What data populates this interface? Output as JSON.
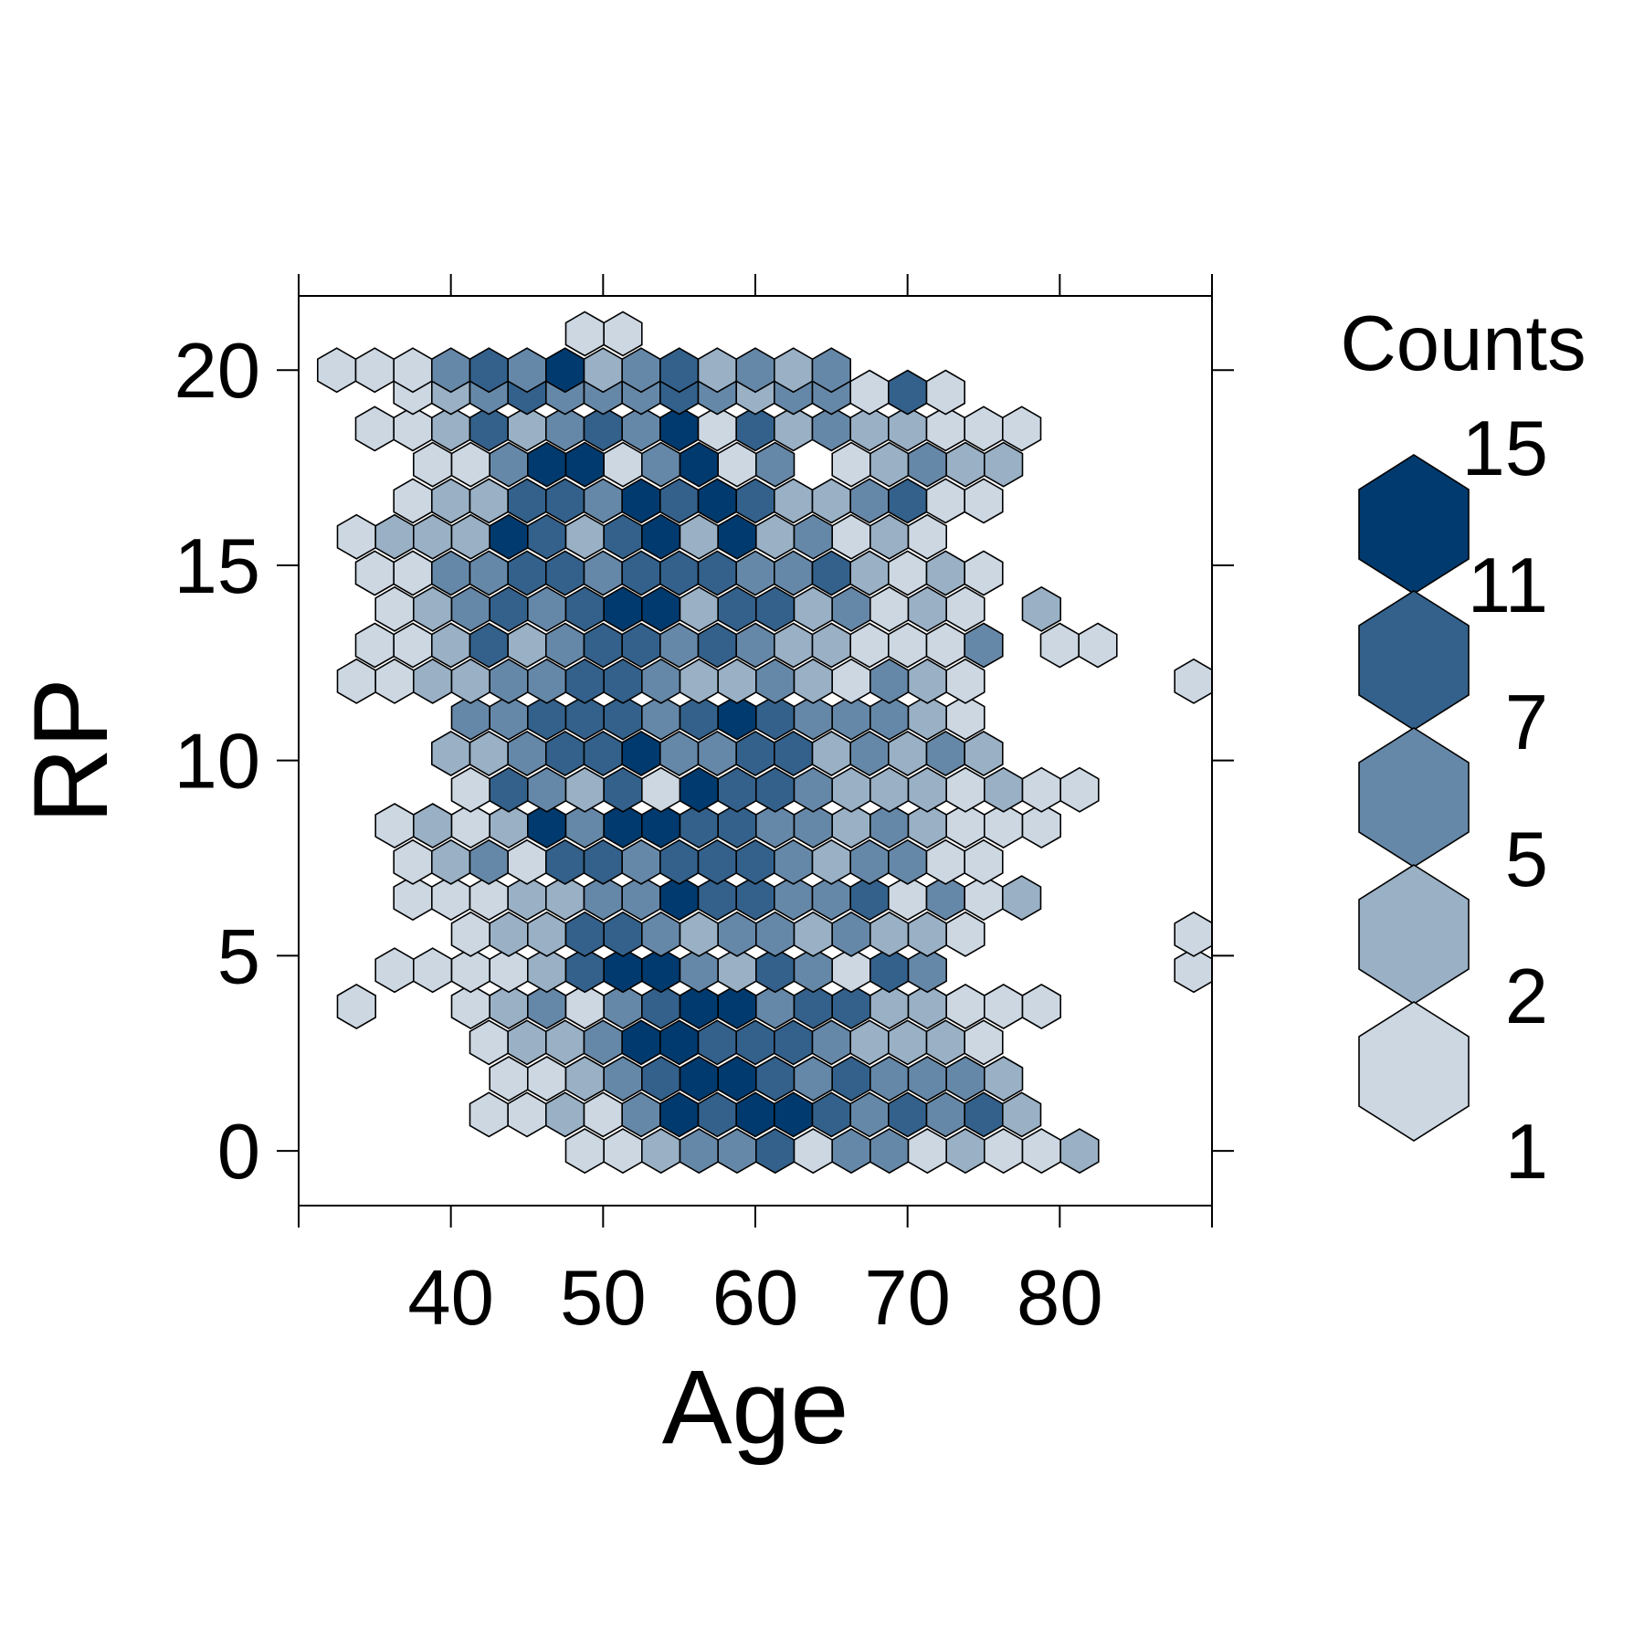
{
  "chart_data": {
    "type": "heatmap",
    "subtype": "hexbin",
    "xlabel": "Age",
    "ylabel": "RP",
    "xlim": [
      30,
      90
    ],
    "ylim": [
      -1.4,
      21.9
    ],
    "x_ticks": [
      40,
      50,
      60,
      70,
      80
    ],
    "y_ticks": [
      0,
      5,
      10,
      15,
      20
    ],
    "hex_width": 2.5,
    "hex_row_step": 0.925,
    "legend": {
      "title": "Counts",
      "position": "right",
      "labels": [
        "15",
        "11",
        "7",
        "5",
        "2",
        "1"
      ]
    },
    "colors": [
      "#ccd7e2",
      "#99b0c5",
      "#6688a8",
      "#33618b",
      "#003a6e"
    ],
    "bin_counts_description_levels": [
      "1",
      "2",
      "5",
      "7",
      "11",
      "15"
    ],
    "bins": [
      [
        0,
        20.0,
        2.5,
        41.1,
        50,
        20.0,
        1,
        42.1,
        2.5,
        29.6,
        51,
        12.7,
        2,
        42.4,
        3.4,
        12.7
      ],
      [
        1,
        30.0,
        1
      ],
      [
        2,
        33.8,
        1
      ]
    ],
    "bin_rows": [
      {
        "y": 0.0,
        "x0": 48.8,
        "levels": [
          0,
          0,
          1,
          2,
          2,
          3,
          0,
          2,
          2,
          0,
          1,
          0,
          0,
          1,
          -1,
          -1,
          -1,
          -1,
          -1,
          0
        ]
      },
      {
        "y": 0.93,
        "x0": 42.5,
        "levels": [
          0,
          0,
          1,
          0,
          2,
          4,
          3,
          4,
          4,
          3,
          2,
          3,
          2,
          3,
          1,
          -1,
          -1,
          -1,
          -1,
          -1,
          -1,
          0,
          -1,
          -1,
          -1,
          -1,
          -1,
          -1
        ]
      },
      {
        "y": 1.85,
        "x0": 43.8,
        "levels": [
          0,
          0,
          1,
          2,
          3,
          4,
          4,
          3,
          2,
          3,
          2,
          2,
          2,
          1,
          -1,
          -1,
          -1,
          -1,
          -1,
          -1,
          -1,
          -1,
          -1,
          -1,
          -1,
          -1,
          -1,
          0,
          0
        ]
      },
      {
        "y": 2.78,
        "x0": 42.5,
        "levels": [
          0,
          1,
          1,
          2,
          4,
          4,
          3,
          3,
          3,
          2,
          1,
          1,
          1,
          0,
          -1,
          -1,
          -1,
          -1,
          -1,
          -1,
          -1,
          -1,
          0,
          -1,
          -1,
          -1,
          -1,
          -1,
          0
        ]
      },
      {
        "y": 3.7,
        "x0": 33.8,
        "levels": [
          0,
          -1,
          -1,
          0,
          1,
          2,
          0,
          2,
          3,
          4,
          4,
          2,
          3,
          3,
          1,
          1,
          0,
          0,
          0,
          -1,
          -1,
          -1,
          -1,
          -1,
          -1,
          -1,
          -1,
          -1,
          -1,
          -1,
          -1,
          0
        ]
      },
      {
        "y": 4.63,
        "x0": 36.3,
        "levels": [
          0,
          0,
          0,
          0,
          1,
          3,
          4,
          4,
          2,
          1,
          3,
          2,
          0,
          3,
          2,
          -1,
          -1,
          -1,
          -1,
          -1,
          -1,
          0,
          0,
          0,
          0,
          -1,
          -1,
          -1,
          0
        ]
      },
      {
        "y": 5.55,
        "x0": 41.3,
        "levels": [
          0,
          1,
          1,
          3,
          3,
          2,
          1,
          2,
          2,
          1,
          2,
          1,
          1,
          0,
          -1,
          -1,
          -1,
          -1,
          -1,
          0
        ]
      },
      {
        "y": 6.48,
        "x0": 37.5,
        "levels": [
          0,
          0,
          0,
          1,
          1,
          2,
          2,
          4,
          3,
          3,
          2,
          2,
          3,
          0,
          2,
          0,
          1,
          -1,
          -1,
          -1,
          -1,
          -1,
          -1,
          0,
          0,
          0
        ]
      },
      {
        "y": 7.4,
        "x0": 37.5,
        "levels": [
          0,
          1,
          2,
          0,
          3,
          3,
          2,
          3,
          3,
          3,
          2,
          1,
          2,
          2,
          0,
          0,
          -1,
          -1,
          -1,
          -1,
          -1,
          -1,
          -1,
          0,
          -1,
          -1,
          -1,
          -1,
          -1,
          0
        ]
      },
      {
        "y": 8.33,
        "x0": 36.3,
        "levels": [
          0,
          1,
          0,
          1,
          4,
          2,
          4,
          4,
          3,
          3,
          2,
          2,
          1,
          2,
          1,
          0,
          0,
          0,
          -1,
          -1,
          -1,
          -1,
          -1,
          -1,
          -1,
          0
        ]
      },
      {
        "y": 9.25,
        "x0": 41.3,
        "levels": [
          0,
          3,
          2,
          1,
          3,
          0,
          4,
          3,
          3,
          2,
          1,
          1,
          1,
          0,
          1,
          0,
          0,
          -1,
          -1,
          -1,
          -1,
          -1,
          0
        ]
      },
      {
        "y": 10.18,
        "x0": 40.0,
        "levels": [
          1,
          1,
          2,
          3,
          3,
          4,
          2,
          2,
          3,
          3,
          1,
          2,
          1,
          2,
          1
        ]
      },
      {
        "y": 11.1,
        "x0": 41.3,
        "levels": [
          2,
          2,
          3,
          3,
          3,
          2,
          3,
          4,
          3,
          2,
          2,
          2,
          1,
          0,
          -1,
          -1,
          -1,
          -1,
          -1,
          -1,
          -1,
          -1,
          -1,
          -1,
          -1,
          0
        ]
      },
      {
        "y": 12.03,
        "x0": 33.8,
        "levels": [
          0,
          0,
          1,
          1,
          2,
          2,
          3,
          3,
          2,
          1,
          1,
          2,
          1,
          0,
          2,
          1,
          0,
          -1,
          -1,
          -1,
          -1,
          -1,
          0
        ]
      },
      {
        "y": 12.95,
        "x0": 35.0,
        "levels": [
          0,
          0,
          1,
          3,
          1,
          2,
          3,
          3,
          2,
          3,
          2,
          1,
          1,
          0,
          0,
          0,
          2,
          -1,
          0,
          0,
          -1,
          -1,
          -1,
          -1,
          -1,
          0
        ]
      },
      {
        "y": 13.88,
        "x0": 36.3,
        "levels": [
          0,
          1,
          2,
          3,
          2,
          3,
          4,
          4,
          1,
          3,
          3,
          1,
          2,
          0,
          1,
          0,
          -1,
          1,
          -1,
          -1,
          -1,
          -1,
          -1,
          -1,
          -1,
          -1,
          -1,
          0
        ]
      },
      {
        "y": 14.8,
        "x0": 35.0,
        "levels": [
          0,
          0,
          2,
          2,
          3,
          3,
          2,
          3,
          3,
          3,
          2,
          2,
          3,
          1,
          0,
          1,
          0
        ]
      },
      {
        "y": 15.73,
        "x0": 33.8,
        "levels": [
          0,
          1,
          1,
          1,
          4,
          3,
          1,
          3,
          4,
          1,
          4,
          1,
          2,
          0,
          1,
          0,
          -1,
          -1,
          -1,
          -1,
          -1,
          -1,
          -1,
          -1,
          0
        ]
      },
      {
        "y": 16.65,
        "x0": 37.5,
        "levels": [
          0,
          1,
          1,
          3,
          3,
          2,
          4,
          3,
          4,
          3,
          1,
          1,
          2,
          3,
          0,
          0,
          -1,
          -1,
          -1,
          -1,
          -1,
          -1,
          -1,
          0,
          0
        ]
      },
      {
        "y": 17.58,
        "x0": 38.8,
        "levels": [
          0,
          0,
          2,
          4,
          4,
          0,
          2,
          4,
          0,
          2,
          -1,
          0,
          1,
          2,
          1,
          1,
          -1,
          -1,
          -1,
          -1,
          -1,
          -1,
          -1,
          -1,
          -1,
          0
        ]
      },
      {
        "y": 18.5,
        "x0": 35.0,
        "levels": [
          0,
          0,
          1,
          3,
          1,
          2,
          3,
          2,
          4,
          0,
          3,
          1,
          2,
          1,
          1,
          0,
          0,
          0,
          -1,
          -1,
          -1,
          -1,
          -1,
          -1,
          -1,
          -1,
          -1,
          0
        ]
      },
      {
        "y": 19.43,
        "x0": 37.5,
        "levels": [
          0,
          1,
          2,
          3,
          2,
          2,
          2,
          3,
          2,
          1,
          2,
          2,
          0,
          3,
          0
        ]
      },
      {
        "y": 20.0,
        "x0": 32.5,
        "levels": [
          0,
          0,
          0,
          2,
          3,
          2,
          4,
          1,
          2,
          3,
          1,
          2,
          1,
          2,
          -1,
          -1,
          -1,
          -1,
          -1,
          -1,
          -1,
          -1,
          -1,
          -1,
          0,
          -1,
          -1,
          -1,
          -1,
          -1,
          -1,
          -1,
          -1,
          0
        ]
      },
      {
        "y": 20.93,
        "x0": 48.8,
        "levels": [
          0,
          0
        ]
      }
    ]
  }
}
